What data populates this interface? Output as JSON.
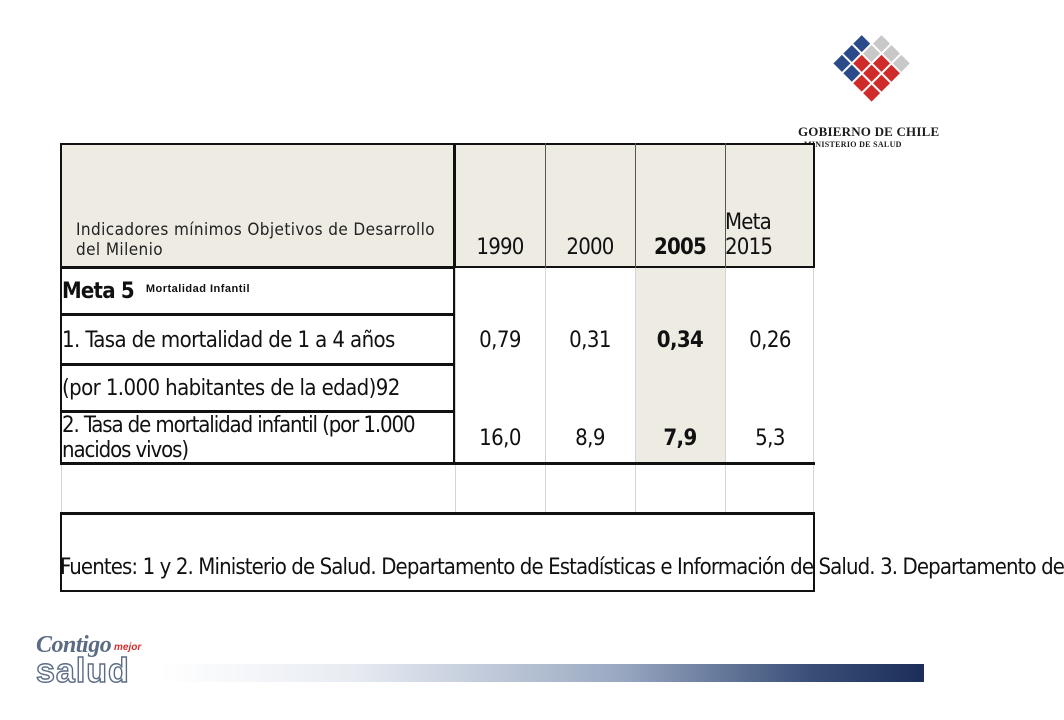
{
  "logo": {
    "name": "GOBIERNO DE CHILE",
    "subtitle": "MINISTERIO DE SALUD"
  },
  "table": {
    "header": {
      "label": "Indicadores mínimos Objetivos de Desarrollo del Milenio",
      "years": [
        "1990",
        "2000",
        "2005",
        "Meta 2015"
      ]
    },
    "meta_row": {
      "title": "Meta 5",
      "subtitle": "Mortalidad Infantil"
    },
    "rows": [
      {
        "label": "1. Tasa de mortalidad de 1 a 4 años",
        "values": [
          "0,79",
          "0,31",
          "0,34",
          "0,26"
        ]
      },
      {
        "label": "(por 1.000 habitantes de la edad)92",
        "values": [
          "",
          "",
          "",
          ""
        ]
      },
      {
        "label": "2. Tasa de mortalidad infantil (por 1.000 nacidos vivos)",
        "values": [
          "16,0",
          "8,9",
          "7,9",
          "5,3"
        ]
      }
    ],
    "highlight_column": "2005",
    "shade_color": "#eeebe2",
    "sources": "Fuentes: 1 y 2. Ministerio de Salud. Departamento de Estadísticas e Información de Salud. 3. Departamento de"
  },
  "brand": {
    "contigo": "Contigo",
    "mejor": "mejor",
    "salud": "salud"
  }
}
